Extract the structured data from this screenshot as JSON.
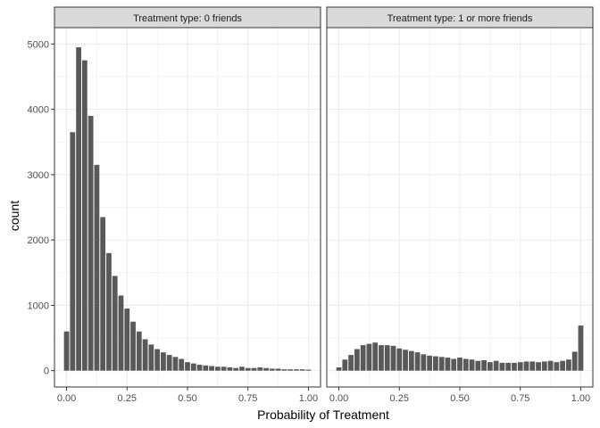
{
  "chart_data": {
    "type": "bar",
    "xlabel": "Probability of Treatment",
    "ylabel": "count",
    "ylim": [
      -250,
      5250
    ],
    "xlim": [
      -0.05,
      1.05
    ],
    "x_ticks": [
      0.0,
      0.25,
      0.5,
      0.75,
      1.0
    ],
    "x_tick_labels": [
      "0.00",
      "0.25",
      "0.50",
      "0.75",
      "1.00"
    ],
    "y_ticks": [
      0,
      1000,
      2000,
      3000,
      4000,
      5000
    ],
    "y_tick_labels": [
      "0",
      "1000",
      "2000",
      "3000",
      "4000",
      "5000"
    ],
    "bin_width": 0.025,
    "grid": true,
    "bar_color": "#595959",
    "panel_background": "#ffffff",
    "grid_color": "#ebebeb",
    "strip_background": "#d9d9d9",
    "panels": [
      {
        "strip_label": "Treatment type: 0 friends",
        "x": [
          0.0,
          0.025,
          0.05,
          0.075,
          0.1,
          0.125,
          0.15,
          0.175,
          0.2,
          0.225,
          0.25,
          0.275,
          0.3,
          0.325,
          0.35,
          0.375,
          0.4,
          0.425,
          0.45,
          0.475,
          0.5,
          0.525,
          0.55,
          0.575,
          0.6,
          0.625,
          0.65,
          0.675,
          0.7,
          0.725,
          0.75,
          0.775,
          0.8,
          0.825,
          0.85,
          0.875,
          0.9,
          0.925,
          0.95,
          0.975,
          1.0
        ],
        "values": [
          600,
          3650,
          4950,
          4750,
          3900,
          3150,
          2350,
          1800,
          1450,
          1150,
          950,
          750,
          600,
          480,
          400,
          330,
          280,
          240,
          210,
          180,
          130,
          110,
          90,
          80,
          70,
          60,
          60,
          50,
          40,
          60,
          40,
          40,
          50,
          40,
          30,
          30,
          20,
          20,
          20,
          20,
          15
        ]
      },
      {
        "strip_label": "Treatment type: 1 or more friends",
        "x": [
          0.0,
          0.025,
          0.05,
          0.075,
          0.1,
          0.125,
          0.15,
          0.175,
          0.2,
          0.225,
          0.25,
          0.275,
          0.3,
          0.325,
          0.35,
          0.375,
          0.4,
          0.425,
          0.45,
          0.475,
          0.5,
          0.525,
          0.55,
          0.575,
          0.6,
          0.625,
          0.65,
          0.675,
          0.7,
          0.725,
          0.75,
          0.775,
          0.8,
          0.825,
          0.85,
          0.875,
          0.9,
          0.925,
          0.95,
          0.975,
          1.0
        ],
        "values": [
          50,
          170,
          240,
          330,
          390,
          410,
          430,
          390,
          390,
          380,
          340,
          320,
          300,
          280,
          250,
          230,
          220,
          210,
          200,
          180,
          200,
          180,
          170,
          150,
          160,
          130,
          150,
          120,
          120,
          120,
          130,
          140,
          140,
          130,
          140,
          150,
          130,
          150,
          170,
          290,
          690
        ]
      }
    ]
  }
}
